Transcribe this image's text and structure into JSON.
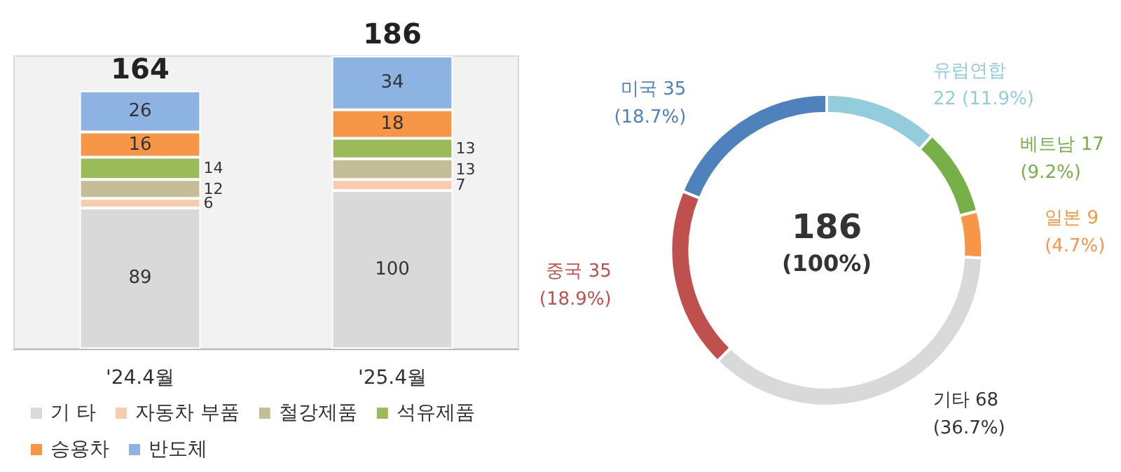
{
  "chart_data": [
    {
      "type": "bar",
      "stacked": true,
      "categories": [
        "'24.4월",
        "'25.4월"
      ],
      "series": [
        {
          "name": "기 타",
          "color": "#d9d9d9",
          "values": [
            89,
            100
          ]
        },
        {
          "name": "자동차 부품",
          "color": "#f8cbad",
          "values": [
            6,
            7
          ]
        },
        {
          "name": "철강제품",
          "color": "#c4bd97",
          "values": [
            12,
            13
          ]
        },
        {
          "name": "석유제품",
          "color": "#9bbb59",
          "values": [
            14,
            13
          ]
        },
        {
          "name": "승용차",
          "color": "#f79646",
          "values": [
            16,
            18
          ]
        },
        {
          "name": "반도체",
          "color": "#8db3e2",
          "values": [
            26,
            34
          ]
        }
      ],
      "data_labels": true,
      "totals": [
        "164",
        "186"
      ],
      "legend": "bottom"
    },
    {
      "type": "donut",
      "categories": [
        "유럽연합",
        "베트남",
        "일본",
        "기타",
        "중국",
        "미국"
      ],
      "values": [
        22,
        17,
        9,
        68,
        35,
        35
      ],
      "value_labels": [
        "22 (11.9%)",
        "17\n(9.2%)",
        "9\n(4.7%)",
        "68\n(36.7%)",
        "35\n(18.9%)",
        "35\n(18.7%)"
      ],
      "colors": [
        "#93cddd",
        "#77b047",
        "#f79646",
        "#d9d9d9",
        "#c0504d",
        "#4f81bd"
      ],
      "annotations": [
        "186",
        "(100%)"
      ]
    }
  ]
}
